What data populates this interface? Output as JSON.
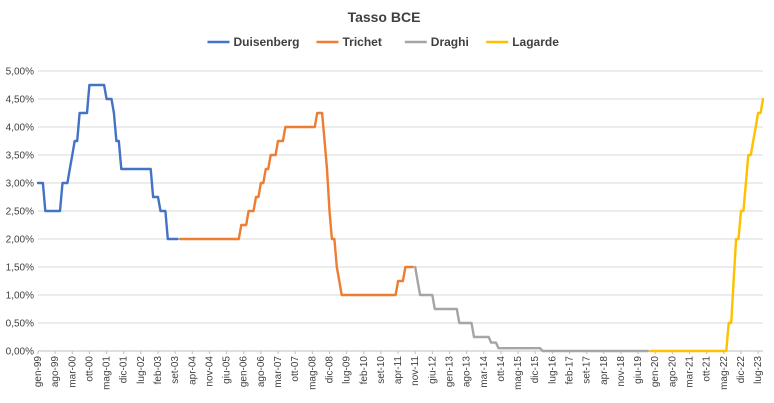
{
  "chart_data": {
    "type": "line",
    "title": "Tasso BCE",
    "xlabel": "",
    "ylabel": "",
    "ylim": [
      0,
      5
    ],
    "grid": true,
    "legend_position": "top",
    "y_ticks": [
      "0,00%",
      "0,50%",
      "1,00%",
      "1,50%",
      "2,00%",
      "2,50%",
      "3,00%",
      "3,50%",
      "4,00%",
      "4,50%",
      "5,00%"
    ],
    "x_ticks": [
      "gen-99",
      "ago-99",
      "mar-00",
      "ott-00",
      "mag-01",
      "dic-01",
      "lug-02",
      "feb-03",
      "set-03",
      "apr-04",
      "nov-04",
      "giu-05",
      "gen-06",
      "ago-06",
      "mar-07",
      "ott-07",
      "mag-08",
      "dic-08",
      "lug-09",
      "feb-10",
      "set-10",
      "apr-11",
      "nov-11",
      "giu-12",
      "gen-13",
      "ago-13",
      "mar-14",
      "ott-14",
      "mag-15",
      "dic-15",
      "lug-16",
      "feb-17",
      "set-17",
      "apr-18",
      "nov-18",
      "giu-19",
      "gen-20",
      "ago-20",
      "mar-21",
      "ott-21",
      "mag-22",
      "dic-22",
      "lug-23"
    ],
    "series": [
      {
        "name": "Duisenberg",
        "color": "#4472c4",
        "points": [
          [
            "1999-01",
            3.0
          ],
          [
            "1999-04",
            2.5
          ],
          [
            "1999-11",
            3.0
          ],
          [
            "2000-02",
            3.25
          ],
          [
            "2000-03",
            3.5
          ],
          [
            "2000-04",
            3.75
          ],
          [
            "2000-06",
            4.25
          ],
          [
            "2000-10",
            4.75
          ],
          [
            "2001-05",
            4.5
          ],
          [
            "2001-08",
            4.25
          ],
          [
            "2001-09",
            3.75
          ],
          [
            "2001-11",
            3.25
          ],
          [
            "2002-12",
            2.75
          ],
          [
            "2003-03",
            2.5
          ],
          [
            "2003-06",
            2.0
          ],
          [
            "2003-10",
            2.0
          ]
        ]
      },
      {
        "name": "Trichet",
        "color": "#ed7d31",
        "points": [
          [
            "2003-11",
            2.0
          ],
          [
            "2005-12",
            2.25
          ],
          [
            "2006-03",
            2.5
          ],
          [
            "2006-06",
            2.75
          ],
          [
            "2006-08",
            3.0
          ],
          [
            "2006-10",
            3.25
          ],
          [
            "2006-12",
            3.5
          ],
          [
            "2007-03",
            3.75
          ],
          [
            "2007-06",
            4.0
          ],
          [
            "2008-07",
            4.25
          ],
          [
            "2008-10",
            3.75
          ],
          [
            "2008-11",
            3.25
          ],
          [
            "2008-12",
            2.5
          ],
          [
            "2009-01",
            2.0
          ],
          [
            "2009-03",
            1.5
          ],
          [
            "2009-04",
            1.25
          ],
          [
            "2009-05",
            1.0
          ],
          [
            "2011-04",
            1.25
          ],
          [
            "2011-07",
            1.5
          ],
          [
            "2011-10",
            1.5
          ]
        ]
      },
      {
        "name": "Draghi",
        "color": "#a5a5a5",
        "points": [
          [
            "2011-11",
            1.5
          ],
          [
            "2011-12",
            1.25
          ],
          [
            "2012-01",
            1.0
          ],
          [
            "2012-07",
            0.75
          ],
          [
            "2013-05",
            0.5
          ],
          [
            "2013-11",
            0.25
          ],
          [
            "2014-06",
            0.15
          ],
          [
            "2014-09",
            0.05
          ],
          [
            "2016-03",
            0.0
          ],
          [
            "2019-10",
            0.0
          ]
        ]
      },
      {
        "name": "Lagarde",
        "color": "#ffc000",
        "points": [
          [
            "2019-11",
            0.0
          ],
          [
            "2022-07",
            0.5
          ],
          [
            "2022-09",
            1.25
          ],
          [
            "2022-10",
            2.0
          ],
          [
            "2022-11",
            2.0
          ],
          [
            "2022-12",
            2.5
          ],
          [
            "2023-01",
            2.5
          ],
          [
            "2023-02",
            3.0
          ],
          [
            "2023-03",
            3.5
          ],
          [
            "2023-04",
            3.5
          ],
          [
            "2023-05",
            3.75
          ],
          [
            "2023-06",
            4.0
          ],
          [
            "2023-07",
            4.25
          ],
          [
            "2023-08",
            4.25
          ],
          [
            "2023-09",
            4.5
          ]
        ]
      }
    ]
  }
}
